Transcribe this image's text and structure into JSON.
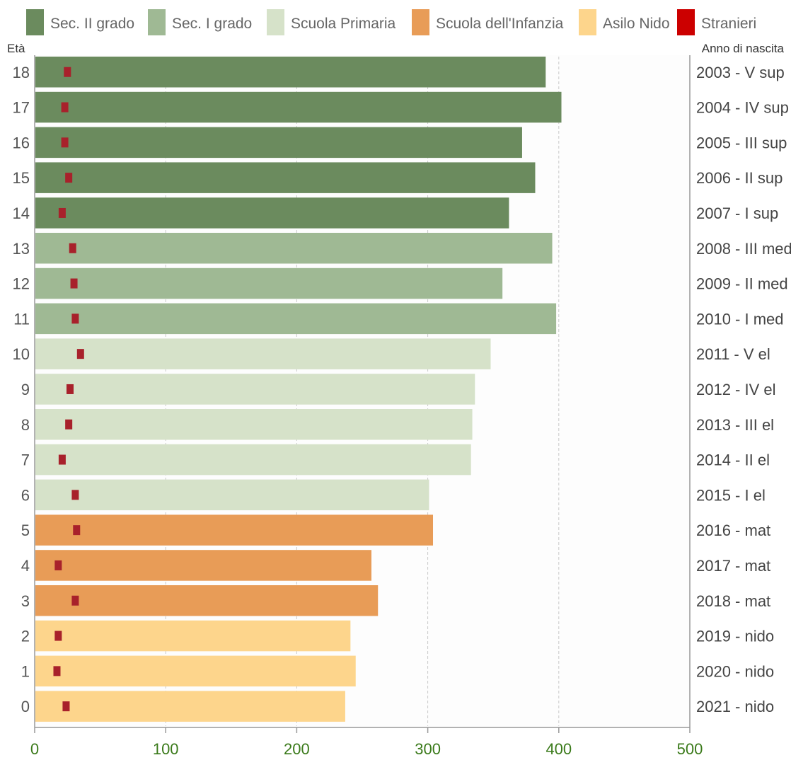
{
  "chart_data": {
    "type": "bar",
    "orientation": "horizontal",
    "xlim": [
      0,
      500
    ],
    "xticks": [
      0,
      100,
      200,
      300,
      400,
      500
    ],
    "grid": true,
    "legend_position": "top",
    "y_axis_left_title": "Età",
    "y_axis_right_title": "Anno di nascita",
    "legend": [
      {
        "key": "sec2",
        "label": "Sec. II grado",
        "color": "#6b8b5e"
      },
      {
        "key": "sec1",
        "label": "Sec. I grado",
        "color": "#9fb994"
      },
      {
        "key": "prim",
        "label": "Scuola Primaria",
        "color": "#d6e2c9"
      },
      {
        "key": "inf",
        "label": "Scuola dell'Infanzia",
        "color": "#e89c57"
      },
      {
        "key": "nido",
        "label": "Asilo Nido",
        "color": "#fdd58c"
      },
      {
        "key": "stra",
        "label": "Stranieri",
        "color": "#cc0000"
      }
    ],
    "foreign_marker_color": "#a8212b",
    "rows": [
      {
        "age": "18",
        "year": "2003 - V sup",
        "group": "sec2",
        "value": 390,
        "stranieri": 25
      },
      {
        "age": "17",
        "year": "2004 - IV sup",
        "group": "sec2",
        "value": 402,
        "stranieri": 23
      },
      {
        "age": "16",
        "year": "2005 - III sup",
        "group": "sec2",
        "value": 372,
        "stranieri": 23
      },
      {
        "age": "15",
        "year": "2006 - II sup",
        "group": "sec2",
        "value": 382,
        "stranieri": 26
      },
      {
        "age": "14",
        "year": "2007 - I sup",
        "group": "sec2",
        "value": 362,
        "stranieri": 21
      },
      {
        "age": "13",
        "year": "2008 - III med",
        "group": "sec1",
        "value": 395,
        "stranieri": 29
      },
      {
        "age": "12",
        "year": "2009 - II med",
        "group": "sec1",
        "value": 357,
        "stranieri": 30
      },
      {
        "age": "11",
        "year": "2010 - I med",
        "group": "sec1",
        "value": 398,
        "stranieri": 31
      },
      {
        "age": "10",
        "year": "2011 - V el",
        "group": "prim",
        "value": 348,
        "stranieri": 35
      },
      {
        "age": "9",
        "year": "2012 - IV el",
        "group": "prim",
        "value": 336,
        "stranieri": 27
      },
      {
        "age": "8",
        "year": "2013 - III el",
        "group": "prim",
        "value": 334,
        "stranieri": 26
      },
      {
        "age": "7",
        "year": "2014 - II el",
        "group": "prim",
        "value": 333,
        "stranieri": 21
      },
      {
        "age": "6",
        "year": "2015 - I el",
        "group": "prim",
        "value": 301,
        "stranieri": 31
      },
      {
        "age": "5",
        "year": "2016 - mat",
        "group": "inf",
        "value": 304,
        "stranieri": 32
      },
      {
        "age": "4",
        "year": "2017 - mat",
        "group": "inf",
        "value": 257,
        "stranieri": 18
      },
      {
        "age": "3",
        "year": "2018 - mat",
        "group": "inf",
        "value": 262,
        "stranieri": 31
      },
      {
        "age": "2",
        "year": "2019 - nido",
        "group": "nido",
        "value": 241,
        "stranieri": 18
      },
      {
        "age": "1",
        "year": "2020 - nido",
        "group": "nido",
        "value": 245,
        "stranieri": 17
      },
      {
        "age": "0",
        "year": "2021 - nido",
        "group": "nido",
        "value": 237,
        "stranieri": 24
      }
    ]
  }
}
